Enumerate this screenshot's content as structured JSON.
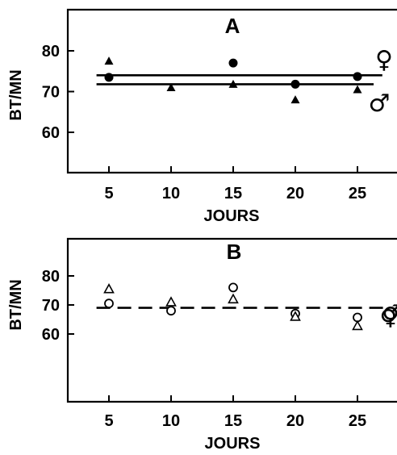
{
  "chart_data": [
    {
      "type": "scatter",
      "title": "A",
      "xlabel": "JOURS",
      "ylabel": "BT/MN",
      "xlim": [
        2,
        28
      ],
      "ylim": [
        50,
        86
      ],
      "xticks": [
        5,
        10,
        15,
        20,
        25
      ],
      "yticks": [
        60,
        70,
        80
      ],
      "series": [
        {
          "marker": "filled-circle",
          "x": [
            5,
            15,
            20,
            25
          ],
          "y": [
            73.5,
            77,
            71.8,
            73.7
          ]
        },
        {
          "marker": "filled-triangle",
          "x": [
            5,
            10,
            15,
            20,
            25
          ],
          "y": [
            77.5,
            71,
            71.8,
            68,
            70.5
          ]
        }
      ],
      "lines": [
        {
          "style": "solid",
          "y": 74,
          "x": [
            4,
            27
          ]
        },
        {
          "style": "solid",
          "y": 71.8,
          "x": [
            4,
            26.3
          ]
        }
      ],
      "legend": [
        "♀",
        "♂"
      ]
    },
    {
      "type": "scatter",
      "title": "B",
      "xlabel": "JOURS",
      "ylabel": "BT/MN",
      "xlim": [
        2,
        28
      ],
      "ylim": [
        50,
        89
      ],
      "xticks": [
        5,
        10,
        15,
        20,
        25
      ],
      "yticks": [
        60,
        70,
        80
      ],
      "series": [
        {
          "marker": "open-circle",
          "x": [
            5,
            10,
            15,
            20,
            25
          ],
          "y": [
            70.5,
            68,
            76,
            67,
            65.7
          ]
        },
        {
          "marker": "open-triangle",
          "x": [
            5,
            10,
            15,
            20,
            25
          ],
          "y": [
            75.5,
            71,
            72,
            66,
            62.8
          ]
        }
      ],
      "lines": [
        {
          "style": "dashed",
          "y": 69,
          "x": [
            4,
            27.3
          ]
        }
      ],
      "legend": [
        "♂",
        "♀"
      ]
    }
  ]
}
